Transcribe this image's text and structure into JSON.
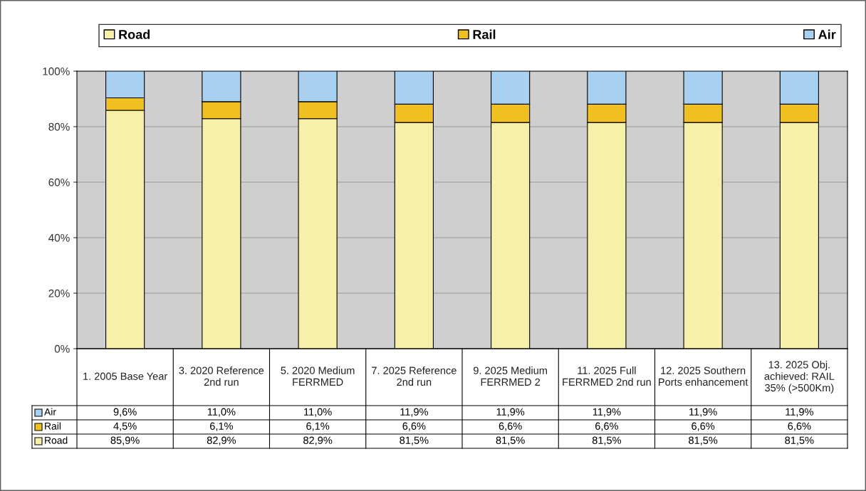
{
  "chart_data": {
    "type": "bar",
    "stacked": true,
    "categories": [
      "1. 2005 Base Year",
      "3. 2020 Reference 2nd run",
      "5. 2020 Medium FERRMED",
      "7. 2025 Reference 2nd run",
      "9. 2025 Medium FERRMED 2",
      "11. 2025 Full FERRMED 2nd run",
      "12. 2025 Southern Ports enhancement",
      "13. 2025 Obj. achieved: RAIL 35% (>500Km)"
    ],
    "series": [
      {
        "name": "Road",
        "color": "#f7f0a8",
        "values": [
          85.9,
          82.9,
          82.9,
          81.5,
          81.5,
          81.5,
          81.5,
          81.5
        ],
        "value_labels": [
          "85,9%",
          "82,9%",
          "82,9%",
          "81,5%",
          "81,5%",
          "81,5%",
          "81,5%",
          "81,5%"
        ]
      },
      {
        "name": "Rail",
        "color": "#f0c020",
        "values": [
          4.5,
          6.1,
          6.1,
          6.6,
          6.6,
          6.6,
          6.6,
          6.6
        ],
        "value_labels": [
          "4,5%",
          "6,1%",
          "6,1%",
          "6,6%",
          "6,6%",
          "6,6%",
          "6,6%",
          "6,6%"
        ]
      },
      {
        "name": "Air",
        "color": "#a8d0f0",
        "values": [
          9.6,
          11.0,
          11.0,
          11.9,
          11.9,
          11.9,
          11.9,
          11.9
        ],
        "value_labels": [
          "9,6%",
          "11,0%",
          "11,0%",
          "11,9%",
          "11,9%",
          "11,9%",
          "11,9%",
          "11,9%"
        ]
      }
    ],
    "ylim": [
      0,
      100
    ],
    "yticks": [
      {
        "value": 0,
        "label": "0%"
      },
      {
        "value": 20,
        "label": "20%"
      },
      {
        "value": 40,
        "label": "40%"
      },
      {
        "value": 60,
        "label": "60%"
      },
      {
        "value": 80,
        "label": "80%"
      },
      {
        "value": 100,
        "label": "100%"
      }
    ],
    "grid": "y",
    "legend": "top"
  }
}
